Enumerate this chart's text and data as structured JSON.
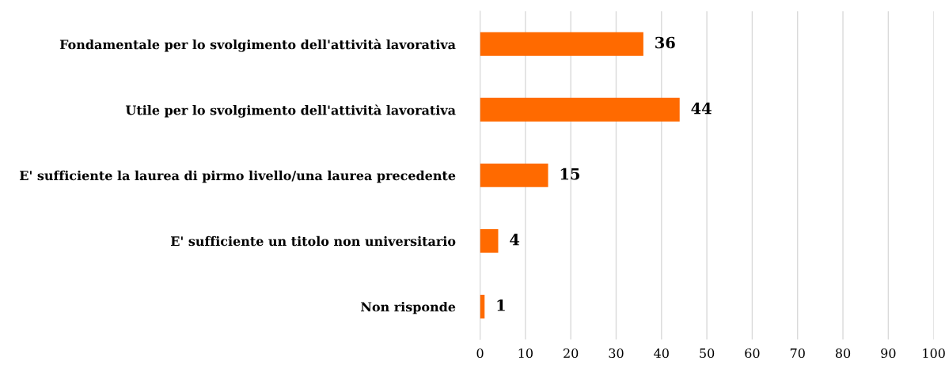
{
  "chart_data": {
    "type": "bar",
    "orientation": "horizontal",
    "categories": [
      "Fondamentale per lo svolgimento dell'attività lavorativa",
      "Utile per lo svolgimento dell'attività lavorativa",
      "E' sufficiente la laurea di pirmo livello/una laurea precedente",
      "E' sufficiente un titolo non universitario",
      "Non risponde"
    ],
    "values": [
      36,
      44,
      15,
      4,
      1
    ],
    "color": "#ff6a00",
    "xlim": [
      0,
      100
    ],
    "xticks": [
      0,
      10,
      20,
      30,
      40,
      50,
      60,
      70,
      80,
      90,
      100
    ],
    "grid": "x",
    "data_labels": true
  }
}
